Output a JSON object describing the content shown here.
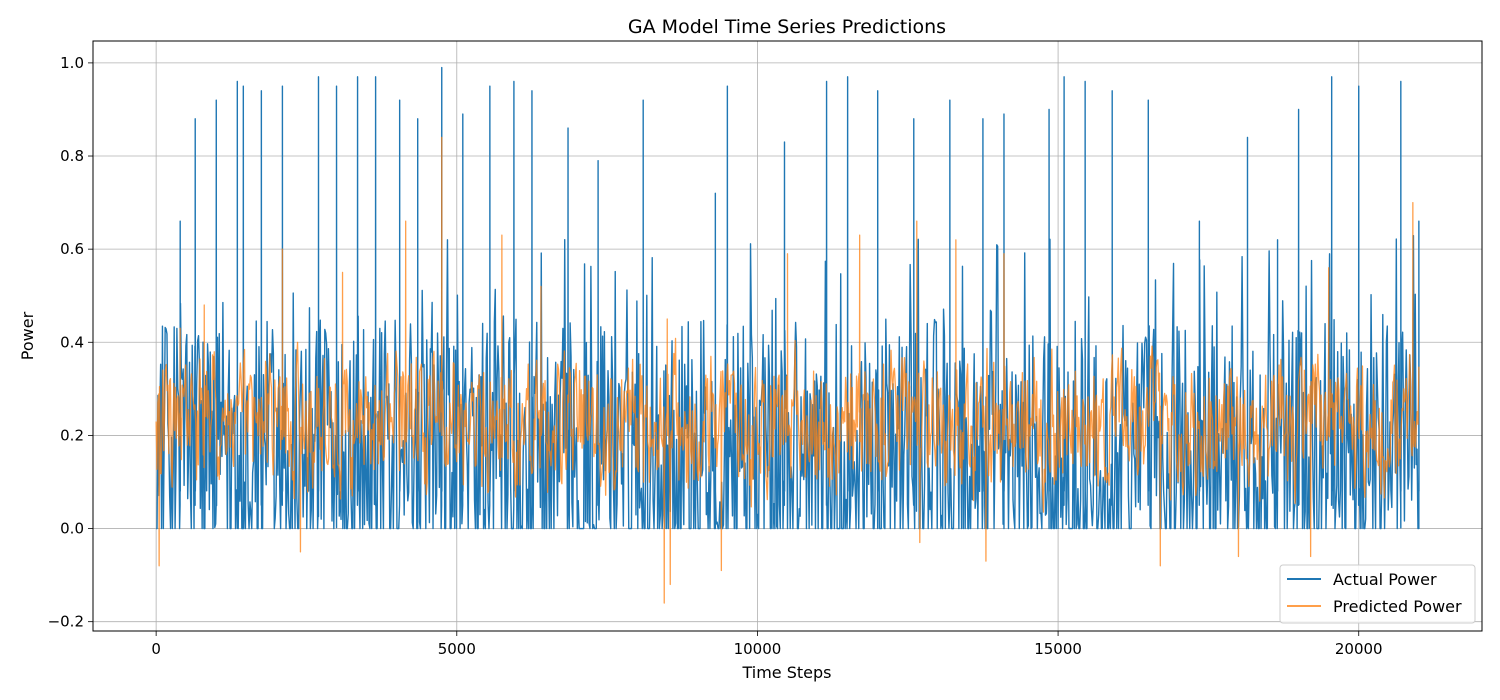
{
  "chart_data": {
    "type": "line",
    "title": "GA Model Time Series Predictions",
    "xlabel": "Time Steps",
    "ylabel": "Power",
    "xlim": [
      -1050,
      22050
    ],
    "ylim": [
      -0.22,
      1.047
    ],
    "xticks": [
      0,
      5000,
      10000,
      15000,
      20000
    ],
    "xtick_labels": [
      "0",
      "5000",
      "10000",
      "15000",
      "20000"
    ],
    "yticks": [
      -0.2,
      0.0,
      0.2,
      0.4,
      0.6,
      0.8,
      1.0
    ],
    "ytick_labels": [
      "−0.2",
      "0.0",
      "0.2",
      "0.4",
      "0.6",
      "0.8",
      "1.0"
    ],
    "grid": true,
    "legend": "lower-right",
    "x_range": [
      0,
      21000
    ],
    "series": [
      {
        "name": "Actual Power",
        "color": "#1f77b4",
        "peaks": [
          [
            400,
            0.66
          ],
          [
            650,
            0.88
          ],
          [
            1000,
            0.92
          ],
          [
            1350,
            0.96
          ],
          [
            1450,
            0.95
          ],
          [
            1750,
            0.94
          ],
          [
            2100,
            0.95
          ],
          [
            2700,
            0.97
          ],
          [
            3000,
            0.95
          ],
          [
            3350,
            0.97
          ],
          [
            3650,
            0.97
          ],
          [
            4050,
            0.92
          ],
          [
            4350,
            0.88
          ],
          [
            4750,
            0.99
          ],
          [
            5100,
            0.89
          ],
          [
            5550,
            0.95
          ],
          [
            5950,
            0.96
          ],
          [
            6250,
            0.94
          ],
          [
            6850,
            0.86
          ],
          [
            7350,
            0.79
          ],
          [
            8100,
            0.92
          ],
          [
            9300,
            0.72
          ],
          [
            9500,
            0.95
          ],
          [
            10450,
            0.83
          ],
          [
            11150,
            0.96
          ],
          [
            11500,
            0.97
          ],
          [
            12000,
            0.94
          ],
          [
            12600,
            0.88
          ],
          [
            13200,
            0.92
          ],
          [
            13750,
            0.88
          ],
          [
            14100,
            0.89
          ],
          [
            14850,
            0.9
          ],
          [
            15100,
            0.97
          ],
          [
            15450,
            0.96
          ],
          [
            15900,
            0.94
          ],
          [
            16500,
            0.92
          ],
          [
            17350,
            0.66
          ],
          [
            18150,
            0.84
          ],
          [
            18650,
            0.62
          ],
          [
            19000,
            0.9
          ],
          [
            19550,
            0.97
          ],
          [
            20000,
            0.95
          ],
          [
            20700,
            0.96
          ],
          [
            21000,
            0.66
          ]
        ],
        "typical_range": [
          0.0,
          0.6
        ]
      },
      {
        "name": "Predicted Power",
        "color": "#ff7f0e",
        "peaks": [
          [
            400,
            0.43
          ],
          [
            800,
            0.48
          ],
          [
            2100,
            0.6
          ],
          [
            3100,
            0.55
          ],
          [
            4150,
            0.66
          ],
          [
            4750,
            0.84
          ],
          [
            5750,
            0.63
          ],
          [
            6400,
            0.52
          ],
          [
            8500,
            0.45
          ],
          [
            10500,
            0.59
          ],
          [
            11700,
            0.63
          ],
          [
            12650,
            0.66
          ],
          [
            13300,
            0.62
          ],
          [
            14100,
            0.59
          ],
          [
            19500,
            0.56
          ],
          [
            20900,
            0.7
          ]
        ],
        "troughs": [
          [
            50,
            -0.08
          ],
          [
            2400,
            -0.05
          ],
          [
            8450,
            -0.16
          ],
          [
            8550,
            -0.12
          ],
          [
            9400,
            -0.09
          ],
          [
            12700,
            -0.03
          ],
          [
            13800,
            -0.07
          ],
          [
            16700,
            -0.08
          ],
          [
            18000,
            -0.06
          ],
          [
            19200,
            -0.06
          ]
        ],
        "typical_range": [
          0.05,
          0.4
        ]
      }
    ]
  }
}
